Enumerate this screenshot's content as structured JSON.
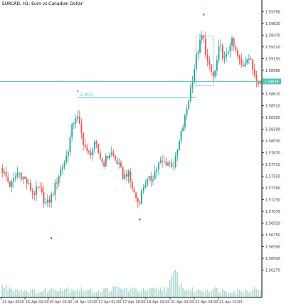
{
  "header": {
    "symbol_label": "EURCAD, H1:",
    "symbol_description": "Euro vs Canadian Dollar"
  },
  "colors": {
    "bull": "#26a69a",
    "bear": "#ef5350",
    "teal_line": "#4fc3b5",
    "marker": "#e53935",
    "axis": "#000000",
    "volume": "#a8d8d2",
    "grid_text": "#333333"
  },
  "current_price_label": "1.58839",
  "annotation": {
    "text": "LT-BOS"
  },
  "chart_data": {
    "type": "candlestick",
    "title": "EURCAD, H1: Euro vs Canadian Dollar",
    "y_ticks": [
      "1.59790",
      "1.59630",
      "1.59470",
      "1.59310",
      "1.59150",
      "1.58990",
      "1.58670",
      "1.58510",
      "1.58350",
      "1.58190",
      "1.58030",
      "1.57870",
      "1.57710",
      "1.57550",
      "1.57390",
      "1.57230",
      "1.57070",
      "1.56910",
      "1.56750",
      "1.56590",
      "1.56430",
      "1.56270"
    ],
    "x_ticks": [
      "14 Apr 2025",
      "15 Apr 02:00",
      "15 Apr 18:00",
      "16 Apr 10:00",
      "17 Apr 02:00",
      "17 Apr 18:00",
      "18 Apr 10:00",
      "21 Apr 02:00",
      "21 Apr 18:00",
      "22 Apr 10:00"
    ],
    "ylim": [
      1.5615,
      1.5987
    ],
    "price_line": 1.58839,
    "bos_level": 1.58625,
    "anchors": [
      [
        0,
        1.5766
      ],
      [
        5,
        1.5741
      ],
      [
        9,
        1.5761
      ],
      [
        13,
        1.5749
      ],
      [
        17,
        1.5731
      ],
      [
        20,
        1.5738
      ],
      [
        24,
        1.5715
      ],
      [
        27,
        1.5729
      ],
      [
        31,
        1.576
      ],
      [
        35,
        1.5784
      ],
      [
        38,
        1.5826
      ],
      [
        40,
        1.5839
      ],
      [
        43,
        1.5808
      ],
      [
        46,
        1.5782
      ],
      [
        50,
        1.5798
      ],
      [
        54,
        1.5771
      ],
      [
        58,
        1.5788
      ],
      [
        62,
        1.5772
      ],
      [
        65,
        1.5753
      ],
      [
        67,
        1.5761
      ],
      [
        70,
        1.5735
      ],
      [
        73,
        1.5718
      ],
      [
        76,
        1.5745
      ],
      [
        80,
        1.5752
      ],
      [
        84,
        1.5773
      ],
      [
        88,
        1.5774
      ],
      [
        92,
        1.577
      ],
      [
        95,
        1.5806
      ],
      [
        98,
        1.5838
      ],
      [
        101,
        1.588
      ],
      [
        104,
        1.5922
      ],
      [
        107,
        1.5948
      ],
      [
        110,
        1.5905
      ],
      [
        113,
        1.5888
      ],
      [
        116,
        1.5932
      ],
      [
        119,
        1.5911
      ],
      [
        122,
        1.5941
      ],
      [
        125,
        1.5921
      ],
      [
        128,
        1.5903
      ],
      [
        131,
        1.5921
      ],
      [
        134,
        1.5898
      ],
      [
        137,
        1.5884
      ]
    ],
    "volume_anchors": [
      [
        0,
        16
      ],
      [
        10,
        11
      ],
      [
        20,
        8
      ],
      [
        30,
        14
      ],
      [
        40,
        12
      ],
      [
        50,
        9
      ],
      [
        60,
        13
      ],
      [
        70,
        11
      ],
      [
        78,
        10
      ],
      [
        88,
        14
      ],
      [
        92,
        38
      ],
      [
        96,
        12
      ],
      [
        104,
        10
      ],
      [
        112,
        12
      ],
      [
        120,
        9
      ],
      [
        130,
        10
      ],
      [
        137,
        14
      ]
    ],
    "markers": [
      {
        "index": 26,
        "price": 1.56735,
        "position": "below"
      },
      {
        "index": 40,
        "price": 1.5868,
        "position": "above"
      },
      {
        "index": 73,
        "price": 1.5699,
        "position": "below"
      },
      {
        "index": 107,
        "price": 1.5972,
        "position": "above"
      }
    ],
    "bos_segment": {
      "from_index": 40,
      "to_index": 103
    },
    "range_box": {
      "from_index": 103,
      "to_index": 112,
      "top": 1.5946,
      "bottom": 1.5878
    },
    "grid": false,
    "legend": "none"
  }
}
